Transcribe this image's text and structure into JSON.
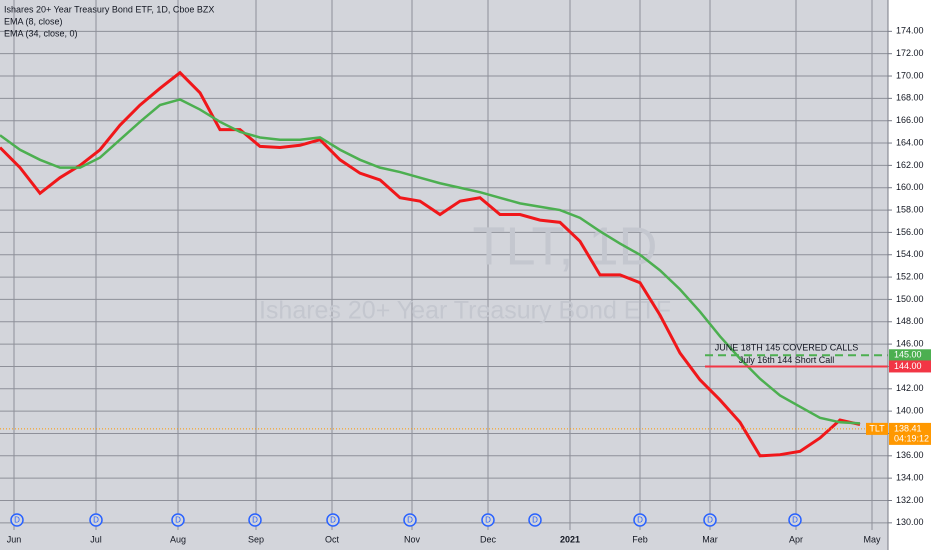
{
  "chart_data": {
    "type": "line",
    "title": "Ishares 20+ Year Treasury Bond ETF, 1D, Cboe BZX",
    "watermark": "TLT, 1D",
    "watermark_subtitle": "Ishares 20+ Year Treasury Bond ETF",
    "x": [
      0,
      5,
      10,
      15,
      20,
      25,
      30,
      35,
      40,
      45,
      50,
      55,
      60,
      65,
      70,
      75,
      80,
      85,
      90,
      95,
      100,
      105,
      110,
      115,
      120,
      125,
      130,
      135,
      140,
      145,
      150,
      155,
      160,
      165,
      170,
      175,
      180,
      185,
      190,
      195,
      200,
      205,
      210,
      215
    ],
    "series": [
      {
        "name": "EMA (8, close)",
        "color": "#f0171a",
        "values": [
          163.6,
          161.8,
          159.5,
          160.9,
          162,
          163.4,
          165.6,
          167.4,
          168.9,
          170.3,
          168.5,
          165.2,
          165.2,
          163.7,
          163.6,
          163.8,
          164.3,
          162.5,
          161.3,
          160.7,
          159.1,
          158.8,
          157.6,
          158.8,
          159.1,
          157.6,
          157.6,
          157.1,
          156.9,
          155.2,
          152.2,
          152.2,
          151.5,
          148.6,
          145.2,
          142.8,
          141,
          139,
          136,
          136.1,
          136.4,
          137.6,
          139.2,
          138.8
        ]
      },
      {
        "name": "EMA (34, close, 0)",
        "color": "#4caf50",
        "values": [
          164.7,
          163.4,
          162.5,
          161.8,
          161.8,
          162.7,
          164.3,
          165.9,
          167.4,
          167.9,
          167,
          165.9,
          165,
          164.5,
          164.3,
          164.3,
          164.5,
          163.4,
          162.5,
          161.8,
          161.4,
          160.9,
          160.4,
          160,
          159.6,
          159.1,
          158.6,
          158.3,
          158,
          157.3,
          156.1,
          155,
          154,
          152.6,
          150.9,
          148.9,
          146.7,
          144.7,
          142.9,
          141.4,
          140.4,
          139.4,
          139,
          138.9
        ]
      }
    ],
    "levels": [
      {
        "name": "JUNE 18TH 145 COVERED CALLS",
        "value": 145,
        "value_label": "145.00",
        "start": 176.25,
        "color": "#4caf50",
        "dashed": true
      },
      {
        "name": "July 16th 144 Short Call",
        "value": 144,
        "value_label": "144.00",
        "start": 176.25,
        "color": "#f23645",
        "dashed": false
      }
    ],
    "price_label": {
      "symbol": "TLT",
      "value": 138.41,
      "countdown": "04:19:12",
      "color": "#ff9800"
    },
    "events": {
      "label": "D",
      "x": [
        4.25,
        24,
        44.5,
        63.75,
        83.25,
        102.5,
        122,
        133.75,
        160,
        177.5,
        198.75
      ]
    },
    "xlim": [
      0,
      222
    ],
    "xticks": [
      {
        "value": 3.5,
        "label": "Jun"
      },
      {
        "value": 24,
        "label": "Jul"
      },
      {
        "value": 44.5,
        "label": "Aug"
      },
      {
        "value": 64,
        "label": "Sep"
      },
      {
        "value": 83,
        "label": "Oct"
      },
      {
        "value": 103,
        "label": "Nov"
      },
      {
        "value": 122,
        "label": "Dec"
      },
      {
        "value": 142.5,
        "label": "2021"
      },
      {
        "value": 160,
        "label": "Feb"
      },
      {
        "value": 177.5,
        "label": "Mar"
      },
      {
        "value": 199,
        "label": "Apr"
      },
      {
        "value": 218,
        "label": "May"
      }
    ],
    "ylim": [
      129,
      176
    ],
    "yticks": [
      {
        "value": 130,
        "label": "130.00"
      },
      {
        "value": 132,
        "label": "132.00"
      },
      {
        "value": 134,
        "label": "134.00"
      },
      {
        "value": 136,
        "label": "136.00"
      },
      {
        "value": 138,
        "label": "138.00"
      },
      {
        "value": 140,
        "label": "140.00"
      },
      {
        "value": 142,
        "label": "142.00"
      },
      {
        "value": 144,
        "label": "144.00"
      },
      {
        "value": 146,
        "label": "146.00"
      },
      {
        "value": 148,
        "label": "148.00"
      },
      {
        "value": 150,
        "label": "150.00"
      },
      {
        "value": 152,
        "label": "152.00"
      },
      {
        "value": 154,
        "label": "154.00"
      },
      {
        "value": 156,
        "label": "156.00"
      },
      {
        "value": 158,
        "label": "158.00"
      },
      {
        "value": 160,
        "label": "160.00"
      },
      {
        "value": 162,
        "label": "162.00"
      },
      {
        "value": 164,
        "label": "164.00"
      },
      {
        "value": 166,
        "label": "166.00"
      },
      {
        "value": 168,
        "label": "168.00"
      },
      {
        "value": 170,
        "label": "170.00"
      },
      {
        "value": 172,
        "label": "172.00"
      },
      {
        "value": 174,
        "label": "174.00"
      }
    ],
    "grid": true
  }
}
